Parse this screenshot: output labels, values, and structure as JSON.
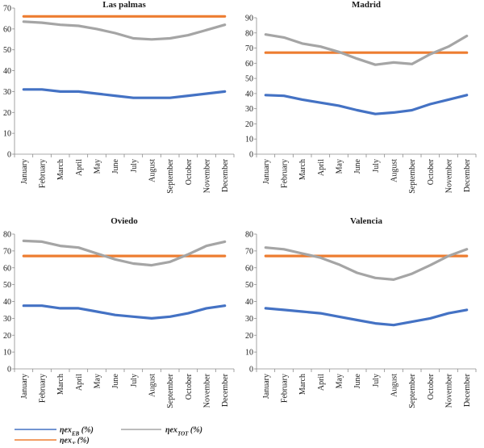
{
  "chart_data": [
    {
      "type": "line",
      "title": "Las palmas",
      "categories": [
        "January",
        "February",
        "March",
        "April",
        "May",
        "June",
        "July",
        "August",
        "September",
        "October",
        "November",
        "December"
      ],
      "yticks": [
        0,
        10,
        20,
        30,
        40,
        50,
        60,
        70
      ],
      "ylim": [
        0,
        70
      ],
      "series": [
        {
          "name": "ηexEB (%)",
          "color": "#4472c4",
          "values": [
            31,
            31,
            30,
            30,
            29,
            28,
            27,
            27,
            27,
            28,
            29,
            30
          ]
        },
        {
          "name": "ηexT (%)",
          "color": "#ed7d31",
          "values": [
            66,
            66,
            66,
            66,
            66,
            66,
            66,
            66,
            66,
            66,
            66,
            66
          ]
        },
        {
          "name": "ηexTOT (%)",
          "color": "#a5a5a5",
          "values": [
            63.5,
            63,
            62,
            61.5,
            60,
            58,
            55.5,
            55,
            55.5,
            57,
            59.5,
            62
          ]
        }
      ]
    },
    {
      "type": "line",
      "title": "Madrid",
      "categories": [
        "January",
        "February",
        "March",
        "April",
        "May",
        "June",
        "July",
        "August",
        "September",
        "October",
        "November",
        "December"
      ],
      "yticks": [
        0,
        10,
        20,
        30,
        40,
        50,
        60,
        70,
        80,
        90
      ],
      "ylim": [
        0,
        90
      ],
      "series": [
        {
          "name": "ηexEB (%)",
          "color": "#4472c4",
          "values": [
            39,
            38.5,
            36,
            34,
            32,
            29,
            26.5,
            27.5,
            29,
            33,
            36,
            39
          ]
        },
        {
          "name": "ηexT (%)",
          "color": "#ed7d31",
          "values": [
            67,
            67,
            67,
            67,
            67,
            67,
            67,
            67,
            67,
            67,
            67,
            67
          ]
        },
        {
          "name": "ηexTOT (%)",
          "color": "#a5a5a5",
          "values": [
            79,
            77,
            73,
            71,
            67.5,
            63,
            59,
            60.5,
            59.5,
            66,
            71,
            78
          ]
        }
      ]
    },
    {
      "type": "line",
      "title": "Oviedo",
      "categories": [
        "January",
        "February",
        "March",
        "April",
        "May",
        "June",
        "July",
        "August",
        "September",
        "October",
        "November",
        "December"
      ],
      "yticks": [
        0,
        10,
        20,
        30,
        40,
        50,
        60,
        70,
        80
      ],
      "ylim": [
        0,
        80
      ],
      "series": [
        {
          "name": "ηexEB (%)",
          "color": "#4472c4",
          "values": [
            37.5,
            37.5,
            36,
            36,
            34,
            32,
            31,
            30,
            31,
            33,
            36,
            37.5
          ]
        },
        {
          "name": "ηexT (%)",
          "color": "#ed7d31",
          "values": [
            67,
            67,
            67,
            67,
            67,
            67,
            67,
            67,
            67,
            67,
            67,
            67
          ]
        },
        {
          "name": "ηexTOT (%)",
          "color": "#a5a5a5",
          "values": [
            76,
            75.5,
            73,
            72,
            68.5,
            65,
            62.5,
            61.5,
            63.5,
            68,
            73,
            75.5
          ]
        }
      ]
    },
    {
      "type": "line",
      "title": "Valencia",
      "categories": [
        "January",
        "February",
        "March",
        "April",
        "May",
        "June",
        "July",
        "August",
        "September",
        "October",
        "November",
        "December"
      ],
      "yticks": [
        0,
        10,
        20,
        30,
        40,
        50,
        60,
        70,
        80
      ],
      "ylim": [
        0,
        80
      ],
      "series": [
        {
          "name": "ηexEB (%)",
          "color": "#4472c4",
          "values": [
            36,
            35,
            34,
            33,
            31,
            29,
            27,
            26,
            28,
            30,
            33,
            35
          ]
        },
        {
          "name": "ηexT (%)",
          "color": "#ed7d31",
          "values": [
            67,
            67,
            67,
            67,
            67,
            67,
            67,
            67,
            67,
            67,
            67,
            67
          ]
        },
        {
          "name": "ηexTOT (%)",
          "color": "#a5a5a5",
          "values": [
            72,
            71,
            68.5,
            66,
            62,
            57,
            54,
            53,
            56.5,
            61.5,
            67,
            71
          ]
        }
      ]
    }
  ],
  "legend": {
    "items": [
      {
        "symbol": "η",
        "base": "ex",
        "sub": "EB",
        "unit": " (%)",
        "color": "#4472c4"
      },
      {
        "symbol": "η",
        "base": "ex",
        "sub": "TOT",
        "unit": " (%)",
        "color": "#a5a5a5"
      },
      {
        "symbol": "η",
        "base": "ex",
        "sub": "T",
        "unit": " (%)",
        "color": "#ed7d31"
      }
    ]
  }
}
